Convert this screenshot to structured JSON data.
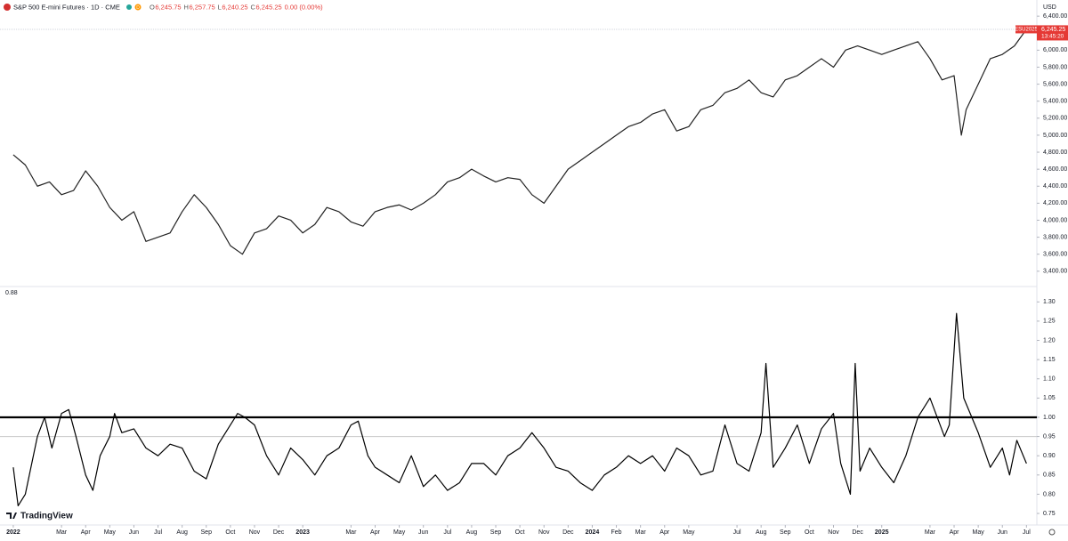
{
  "chart_data": [
    {
      "type": "line",
      "title": "S&P 500 E-mini Futures · 1D · CME",
      "interval": "D",
      "currency": "USD",
      "ohlc": [
        {
          "key": "O",
          "value": "6,245.75"
        },
        {
          "key": "H",
          "value": "6,257.75"
        },
        {
          "key": "L",
          "value": "6,240.25"
        },
        {
          "key": "C",
          "value": "6,245.25"
        }
      ],
      "change": "0.00 (0.00%)",
      "xlim": [
        -0.55,
        42.43
      ],
      "ylim": [
        3220,
        6590
      ],
      "yticks": [
        {
          "value": 3400,
          "label": "3,400.00"
        },
        {
          "value": 3600,
          "label": "3,600.00"
        },
        {
          "value": 3800,
          "label": "3,800.00"
        },
        {
          "value": 4000,
          "label": "4,000.00"
        },
        {
          "value": 4200,
          "label": "4,200.00"
        },
        {
          "value": 4400,
          "label": "4,400.00"
        },
        {
          "value": 4600,
          "label": "4,600.00"
        },
        {
          "value": 4800,
          "label": "4,800.00"
        },
        {
          "value": 5000,
          "label": "5,000.00"
        },
        {
          "value": 5200,
          "label": "5,200.00"
        },
        {
          "value": 5400,
          "label": "5,400.00"
        },
        {
          "value": 5600,
          "label": "5,600.00"
        },
        {
          "value": 5800,
          "label": "5,800.00"
        },
        {
          "value": 6000,
          "label": "6,000.00"
        },
        {
          "value": 6200,
          "label": "6,200.00"
        },
        {
          "value": 6400,
          "label": "6,400.00"
        }
      ],
      "x": [
        0,
        0.5,
        1,
        1.5,
        2,
        2.5,
        3,
        3.5,
        4,
        4.5,
        5,
        5.5,
        6,
        6.5,
        7,
        7.5,
        8,
        8.5,
        9,
        9.5,
        10,
        10.5,
        11,
        11.5,
        12,
        12.5,
        13,
        13.5,
        14,
        14.5,
        15,
        15.5,
        16,
        16.5,
        17,
        17.5,
        18,
        18.5,
        19,
        19.5,
        20,
        20.5,
        21,
        21.5,
        22,
        22.5,
        23,
        23.5,
        24,
        24.5,
        25,
        25.5,
        26,
        26.5,
        27,
        27.5,
        28,
        28.5,
        29,
        29.5,
        30,
        30.5,
        31,
        31.5,
        32,
        32.5,
        33,
        33.5,
        34,
        34.5,
        35,
        35.5,
        36,
        36.5,
        37,
        37.5,
        38,
        38.5,
        39,
        39.3,
        39.5,
        40,
        40.5,
        41,
        41.5,
        42
      ],
      "series": [
        {
          "name": "ESU2025",
          "color": "#222222",
          "values": [
            4770,
            4650,
            4400,
            4450,
            4300,
            4350,
            4580,
            4400,
            4150,
            4000,
            4100,
            3750,
            3800,
            3850,
            4100,
            4300,
            4150,
            3950,
            3700,
            3600,
            3850,
            3900,
            4050,
            4000,
            3850,
            3950,
            4150,
            4100,
            3980,
            3930,
            4100,
            4150,
            4180,
            4120,
            4200,
            4300,
            4450,
            4500,
            4600,
            4520,
            4450,
            4500,
            4480,
            4300,
            4200,
            4400,
            4600,
            4700,
            4800,
            4900,
            5000,
            5100,
            5150,
            5250,
            5300,
            5050,
            5100,
            5300,
            5350,
            5500,
            5550,
            5650,
            5500,
            5450,
            5650,
            5700,
            5800,
            5900,
            5800,
            6000,
            6050,
            6000,
            5950,
            6000,
            6050,
            6100,
            5900,
            5650,
            5700,
            5000,
            5300,
            5600,
            5900,
            5950,
            6050,
            6245.25
          ]
        }
      ],
      "last_price": {
        "symbol": "ESU2025",
        "value": 6245.25,
        "label": "6,245.25",
        "countdown": "13:45:20",
        "color": "#e53935"
      }
    },
    {
      "type": "line",
      "xlim": [
        -0.55,
        42.43
      ],
      "ylim": [
        0.72,
        1.34
      ],
      "yticks": [
        {
          "value": 0.75,
          "label": "0.75"
        },
        {
          "value": 0.8,
          "label": "0.80"
        },
        {
          "value": 0.85,
          "label": "0.85"
        },
        {
          "value": 0.9,
          "label": "0.90"
        },
        {
          "value": 0.95,
          "label": "0.95"
        },
        {
          "value": 1,
          "label": "1.00"
        },
        {
          "value": 1.05,
          "label": "1.05"
        },
        {
          "value": 1.1,
          "label": "1.10"
        },
        {
          "value": 1.15,
          "label": "1.15"
        },
        {
          "value": 1.2,
          "label": "1.20"
        },
        {
          "value": 1.25,
          "label": "1.25"
        },
        {
          "value": 1.3,
          "label": "1.30"
        }
      ],
      "xticks": [
        {
          "value": 0,
          "label": "2022"
        },
        {
          "value": 2,
          "label": "Mar"
        },
        {
          "value": 3,
          "label": "Apr"
        },
        {
          "value": 4,
          "label": "May"
        },
        {
          "value": 5,
          "label": "Jun"
        },
        {
          "value": 6,
          "label": "Jul"
        },
        {
          "value": 7,
          "label": "Aug"
        },
        {
          "value": 8,
          "label": "Sep"
        },
        {
          "value": 9,
          "label": "Oct"
        },
        {
          "value": 10,
          "label": "Nov"
        },
        {
          "value": 11,
          "label": "Dec"
        },
        {
          "value": 12,
          "label": "2023"
        },
        {
          "value": 14,
          "label": "Mar"
        },
        {
          "value": 15,
          "label": "Apr"
        },
        {
          "value": 16,
          "label": "May"
        },
        {
          "value": 17,
          "label": "Jun"
        },
        {
          "value": 18,
          "label": "Jul"
        },
        {
          "value": 19,
          "label": "Aug"
        },
        {
          "value": 20,
          "label": "Sep"
        },
        {
          "value": 21,
          "label": "Oct"
        },
        {
          "value": 22,
          "label": "Nov"
        },
        {
          "value": 23,
          "label": "Dec"
        },
        {
          "value": 24,
          "label": "2024"
        },
        {
          "value": 25,
          "label": "Feb"
        },
        {
          "value": 26,
          "label": "Mar"
        },
        {
          "value": 27,
          "label": "Apr"
        },
        {
          "value": 28,
          "label": "May"
        },
        {
          "value": 30,
          "label": "Jul"
        },
        {
          "value": 31,
          "label": "Aug"
        },
        {
          "value": 32,
          "label": "Sep"
        },
        {
          "value": 33,
          "label": "Oct"
        },
        {
          "value": 34,
          "label": "Nov"
        },
        {
          "value": 35,
          "label": "Dec"
        },
        {
          "value": 36,
          "label": "2025"
        },
        {
          "value": 38,
          "label": "Mar"
        },
        {
          "value": 39,
          "label": "Apr"
        },
        {
          "value": 40,
          "label": "May"
        },
        {
          "value": 41,
          "label": "Jun"
        },
        {
          "value": 42,
          "label": "Jul"
        }
      ],
      "hlines": [
        {
          "value": 1,
          "color": "#000000",
          "line_width": 2.2
        },
        {
          "value": 0.95,
          "color": "#c8c8c8",
          "line_width": 1
        }
      ],
      "x": [
        0,
        0.2,
        0.5,
        1,
        1.3,
        1.6,
        2,
        2.3,
        2.6,
        3,
        3.3,
        3.6,
        4,
        4.2,
        4.5,
        5,
        5.5,
        6,
        6.5,
        7,
        7.5,
        8,
        8.5,
        9,
        9.3,
        9.6,
        10,
        10.5,
        11,
        11.5,
        12,
        12.5,
        13,
        13.5,
        14,
        14.3,
        14.7,
        15,
        15.5,
        16,
        16.5,
        17,
        17.5,
        18,
        18.5,
        19,
        19.5,
        20,
        20.5,
        21,
        21.5,
        22,
        22.5,
        23,
        23.5,
        24,
        24.5,
        25,
        25.5,
        26,
        26.5,
        27,
        27.5,
        28,
        28.5,
        29,
        29.5,
        30,
        30.5,
        31,
        31.2,
        31.5,
        32,
        32.5,
        33,
        33.5,
        34,
        34.3,
        34.7,
        34.9,
        35.1,
        35.5,
        36,
        36.5,
        37,
        37.5,
        38,
        38.3,
        38.6,
        38.8,
        39.1,
        39.4,
        40,
        40.5,
        41,
        41.3,
        41.6,
        42
      ],
      "series": [
        {
          "color": "#000000",
          "values": [
            0.87,
            0.77,
            0.8,
            0.95,
            1.0,
            0.92,
            1.01,
            1.02,
            0.95,
            0.85,
            0.81,
            0.9,
            0.95,
            1.01,
            0.96,
            0.97,
            0.92,
            0.9,
            0.93,
            0.92,
            0.86,
            0.84,
            0.93,
            0.98,
            1.01,
            1.0,
            0.98,
            0.9,
            0.85,
            0.92,
            0.89,
            0.85,
            0.9,
            0.92,
            0.98,
            0.99,
            0.9,
            0.87,
            0.85,
            0.83,
            0.9,
            0.82,
            0.85,
            0.81,
            0.83,
            0.88,
            0.88,
            0.85,
            0.9,
            0.92,
            0.96,
            0.92,
            0.87,
            0.86,
            0.83,
            0.81,
            0.85,
            0.87,
            0.9,
            0.88,
            0.9,
            0.86,
            0.92,
            0.9,
            0.85,
            0.86,
            0.98,
            0.88,
            0.86,
            0.96,
            1.14,
            0.87,
            0.92,
            0.98,
            0.88,
            0.97,
            1.01,
            0.88,
            0.8,
            1.14,
            0.86,
            0.92,
            0.87,
            0.83,
            0.9,
            1.0,
            1.05,
            1.0,
            0.95,
            0.98,
            1.27,
            1.05,
            0.96,
            0.87,
            0.92,
            0.85,
            0.94,
            0.88
          ]
        }
      ],
      "brand": "TradingView"
    }
  ]
}
